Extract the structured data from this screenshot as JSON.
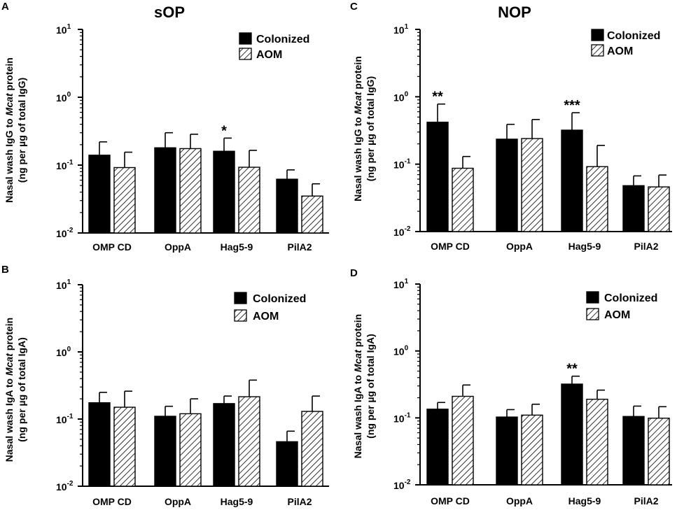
{
  "chart_data": [
    {
      "panel": "A",
      "type": "bar",
      "title": "sOP",
      "ylabel_parts": [
        "Nasal wash IgG  to ",
        "Mcat",
        " protein"
      ],
      "ylabel2": "(ng per µg of total IgG)",
      "yscale": "log",
      "ylim": [
        0.01,
        10
      ],
      "yticks": [
        {
          "base": "10",
          "exp": "1"
        },
        {
          "base": "10",
          "exp": "0"
        },
        {
          "base": "10",
          "exp": "-1"
        },
        {
          "base": "10",
          "exp": "-2"
        }
      ],
      "categories": [
        "OMP CD",
        "OppA",
        "Hag5-9",
        "PilA2"
      ],
      "series": [
        {
          "name": "Colonized",
          "values": [
            0.14,
            0.18,
            0.16,
            0.062
          ],
          "errors": [
            0.22,
            0.3,
            0.25,
            0.085
          ]
        },
        {
          "name": "AOM",
          "values": [
            0.092,
            0.175,
            0.093,
            0.035
          ],
          "errors": [
            0.155,
            0.285,
            0.165,
            0.053
          ]
        }
      ],
      "annotations": [
        {
          "category": "Hag5-9",
          "series": "Colonized",
          "text": "*"
        }
      ],
      "legend": [
        "Colonized",
        "AOM"
      ]
    },
    {
      "panel": "B",
      "type": "bar",
      "title": "",
      "ylabel_parts": [
        "Nasal wash IgA  to ",
        "Mcat",
        " protein"
      ],
      "ylabel2": "(ng per µg of total IgA)",
      "yscale": "log",
      "ylim": [
        0.01,
        10
      ],
      "yticks": [
        {
          "base": "10",
          "exp": "1"
        },
        {
          "base": "10",
          "exp": "0"
        },
        {
          "base": "10",
          "exp": "-1"
        },
        {
          "base": "10",
          "exp": "-2"
        }
      ],
      "categories": [
        "OMP CD",
        "OppA",
        "Hag5-9",
        "PilA2"
      ],
      "series": [
        {
          "name": "Colonized",
          "values": [
            0.175,
            0.11,
            0.17,
            0.046
          ],
          "errors": [
            0.25,
            0.155,
            0.22,
            0.066
          ]
        },
        {
          "name": "AOM",
          "values": [
            0.15,
            0.12,
            0.215,
            0.13
          ],
          "errors": [
            0.26,
            0.2,
            0.38,
            0.22
          ]
        }
      ],
      "annotations": [],
      "legend": [
        "Colonized",
        "AOM"
      ]
    },
    {
      "panel": "C",
      "type": "bar",
      "title": "NOP",
      "ylabel_parts": [
        "Nasal wash IgG  to ",
        "Mcat",
        " protein"
      ],
      "ylabel2": "(ng per µg of total IgG)",
      "yscale": "log",
      "ylim": [
        0.01,
        10
      ],
      "yticks": [
        {
          "base": "10",
          "exp": "1"
        },
        {
          "base": "10",
          "exp": "0"
        },
        {
          "base": "10",
          "exp": "-1"
        },
        {
          "base": "10",
          "exp": "-2"
        }
      ],
      "categories": [
        "OMP CD",
        "OppA",
        "Hag5-9",
        "PilA2"
      ],
      "series": [
        {
          "name": "Colonized",
          "values": [
            0.42,
            0.235,
            0.32,
            0.048
          ],
          "errors": [
            0.78,
            0.39,
            0.58,
            0.067
          ]
        },
        {
          "name": "AOM",
          "values": [
            0.087,
            0.24,
            0.092,
            0.046
          ],
          "errors": [
            0.13,
            0.46,
            0.19,
            0.069
          ]
        }
      ],
      "annotations": [
        {
          "category": "OMP CD",
          "series": "Colonized",
          "text": "**"
        },
        {
          "category": "Hag5-9",
          "series": "Colonized",
          "text": "***"
        }
      ],
      "legend": [
        "Colonized",
        "AOM"
      ]
    },
    {
      "panel": "D",
      "type": "bar",
      "title": "",
      "ylabel_parts": [
        "Nasal wash IgA  to ",
        "Mcat",
        " protein"
      ],
      "ylabel2": "(ng per µg of total IgA)",
      "yscale": "log",
      "ylim": [
        0.01,
        10
      ],
      "yticks": [
        {
          "base": "10",
          "exp": "1"
        },
        {
          "base": "10",
          "exp": "0"
        },
        {
          "base": "10",
          "exp": "-1"
        },
        {
          "base": "10",
          "exp": "-2"
        }
      ],
      "categories": [
        "OMP CD",
        "OppA",
        "Hag5-9",
        "PilA2"
      ],
      "series": [
        {
          "name": "Colonized",
          "values": [
            0.135,
            0.103,
            0.32,
            0.105
          ],
          "errors": [
            0.17,
            0.133,
            0.42,
            0.15
          ]
        },
        {
          "name": "AOM",
          "values": [
            0.21,
            0.11,
            0.19,
            0.099
          ],
          "errors": [
            0.31,
            0.16,
            0.26,
            0.147
          ]
        }
      ],
      "annotations": [
        {
          "category": "Hag5-9",
          "series": "Colonized",
          "text": "**"
        }
      ],
      "legend": [
        "Colonized",
        "AOM"
      ]
    }
  ]
}
